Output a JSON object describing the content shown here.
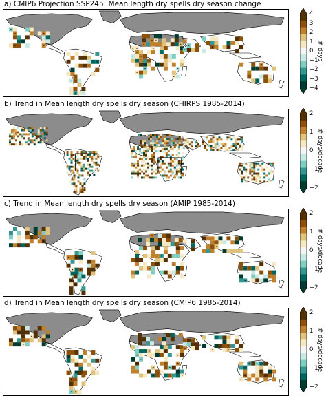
{
  "panels": [
    {
      "title": "a)    CMIP6 Projection SSP245: Mean length dry spells dry season change",
      "cbar_label": "# days",
      "ticks": [
        "4",
        "3",
        "2",
        "1",
        "0",
        "−1",
        "−2",
        "−3",
        "−4"
      ],
      "tick_values": [
        4,
        3,
        2,
        1,
        0,
        -1,
        -2,
        -3,
        -4
      ]
    },
    {
      "title": "b)        Trend in Mean length dry spells dry season (CHIRPS 1985-2014)",
      "cbar_label": "# days/decade",
      "ticks": [
        "2",
        "1",
        "0",
        "−1",
        "−2"
      ],
      "tick_values": [
        2,
        1,
        0,
        -1,
        -2
      ]
    },
    {
      "title": "c)        Trend in Mean length dry spells dry season (AMIP 1985-2014)",
      "cbar_label": "# days/decade",
      "ticks": [
        "2",
        "1",
        "0",
        "−1",
        "−2"
      ],
      "tick_values": [
        2,
        1,
        0,
        -1,
        -2
      ]
    },
    {
      "title": "d)        Trend in Mean length dry spells dry season (CMIP6 1985-2014)",
      "cbar_label": "# days/decade",
      "ticks": [
        "2",
        "1",
        "0",
        "−1",
        "−2"
      ],
      "tick_values": [
        2,
        1,
        0,
        -1,
        -2
      ]
    }
  ],
  "colors": {
    "masked_land": "#8c8c8c",
    "scale": [
      "#003c30",
      "#01665e",
      "#35978f",
      "#80cdc1",
      "#c7eae5",
      "#f5f5f5",
      "#f6e8c3",
      "#dfc27d",
      "#bf812d",
      "#8c510a",
      "#543005"
    ]
  }
}
